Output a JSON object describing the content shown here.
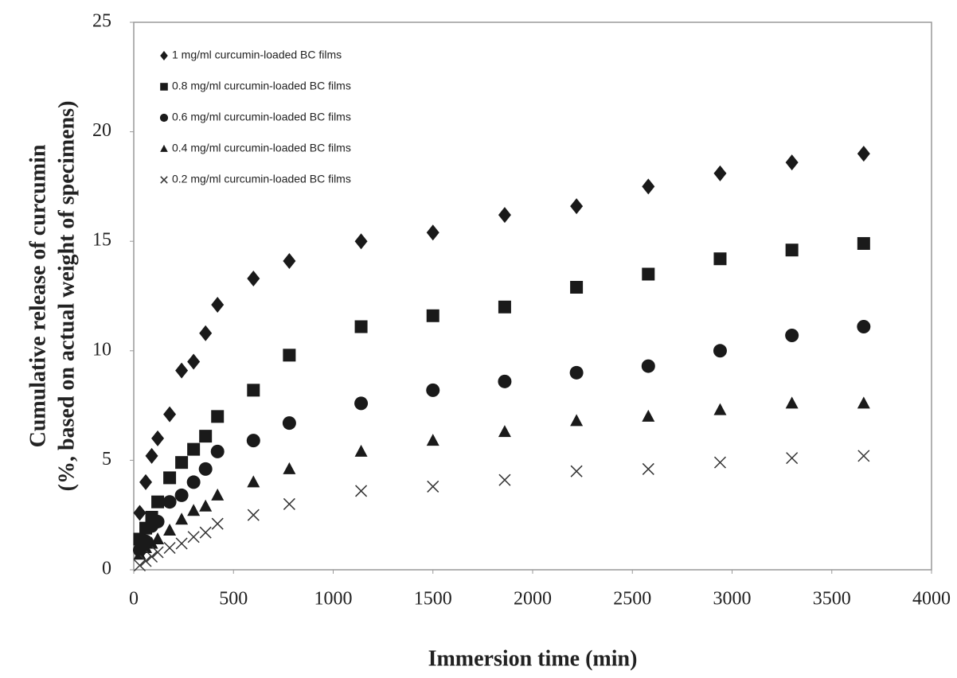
{
  "chart_data": {
    "type": "scatter",
    "xlabel": "Immersion time (min)",
    "ylabel": [
      "Cumulative release of curcumin",
      "(%, based on actual weight of specimens)"
    ],
    "x": [
      30,
      60,
      90,
      120,
      180,
      240,
      300,
      360,
      420,
      600,
      780,
      1140,
      1500,
      1860,
      2220,
      2580,
      2940,
      3300,
      3660
    ],
    "xlim": [
      0,
      4000
    ],
    "xticks": [
      0,
      500,
      1000,
      1500,
      2000,
      2500,
      3000,
      3500,
      4000
    ],
    "ylim": [
      0,
      25
    ],
    "yticks": [
      0,
      5,
      10,
      15,
      20,
      25
    ],
    "legend": "upper left",
    "series": [
      {
        "name": "1 mg/ml curcumin-loaded  BC films",
        "marker": "diamond",
        "color": "#1a1a1a",
        "values": [
          2.6,
          4.0,
          5.2,
          6.0,
          7.1,
          9.1,
          9.5,
          10.8,
          12.1,
          13.3,
          14.1,
          15.0,
          15.4,
          16.2,
          16.6,
          17.5,
          18.1,
          18.6,
          19.0
        ]
      },
      {
        "name": "0.8 mg/ml curcumin-loaded  BC films",
        "marker": "square",
        "color": "#1a1a1a",
        "values": [
          1.4,
          1.9,
          2.4,
          3.1,
          4.2,
          4.9,
          5.5,
          6.1,
          7.0,
          8.2,
          9.8,
          11.1,
          11.6,
          12.0,
          12.9,
          13.5,
          14.2,
          14.6,
          14.9
        ]
      },
      {
        "name": "0.6 mg/ml curcumin-loaded  BC films",
        "marker": "circle",
        "color": "#1a1a1a",
        "values": [
          0.9,
          1.3,
          2.0,
          2.2,
          3.1,
          3.4,
          4.0,
          4.6,
          5.4,
          5.9,
          6.7,
          7.6,
          8.2,
          8.6,
          9.0,
          9.3,
          10.0,
          10.7,
          11.1
        ]
      },
      {
        "name": "0.4 mg/ml curcumin-loaded  BC films",
        "marker": "triangle",
        "color": "#1a1a1a",
        "values": [
          0.7,
          1.0,
          1.2,
          1.4,
          1.8,
          2.3,
          2.7,
          2.9,
          3.4,
          4.0,
          4.6,
          5.4,
          5.9,
          6.3,
          6.8,
          7.0,
          7.3,
          7.6,
          7.6
        ]
      },
      {
        "name": "0.2 mg/ml curcumin-loaded  BC films",
        "marker": "cross",
        "color": "#333333",
        "values": [
          0.2,
          0.4,
          0.6,
          0.8,
          1.0,
          1.2,
          1.5,
          1.7,
          2.1,
          2.5,
          3.0,
          3.6,
          3.8,
          4.1,
          4.5,
          4.6,
          4.9,
          5.1,
          5.2
        ]
      }
    ]
  }
}
